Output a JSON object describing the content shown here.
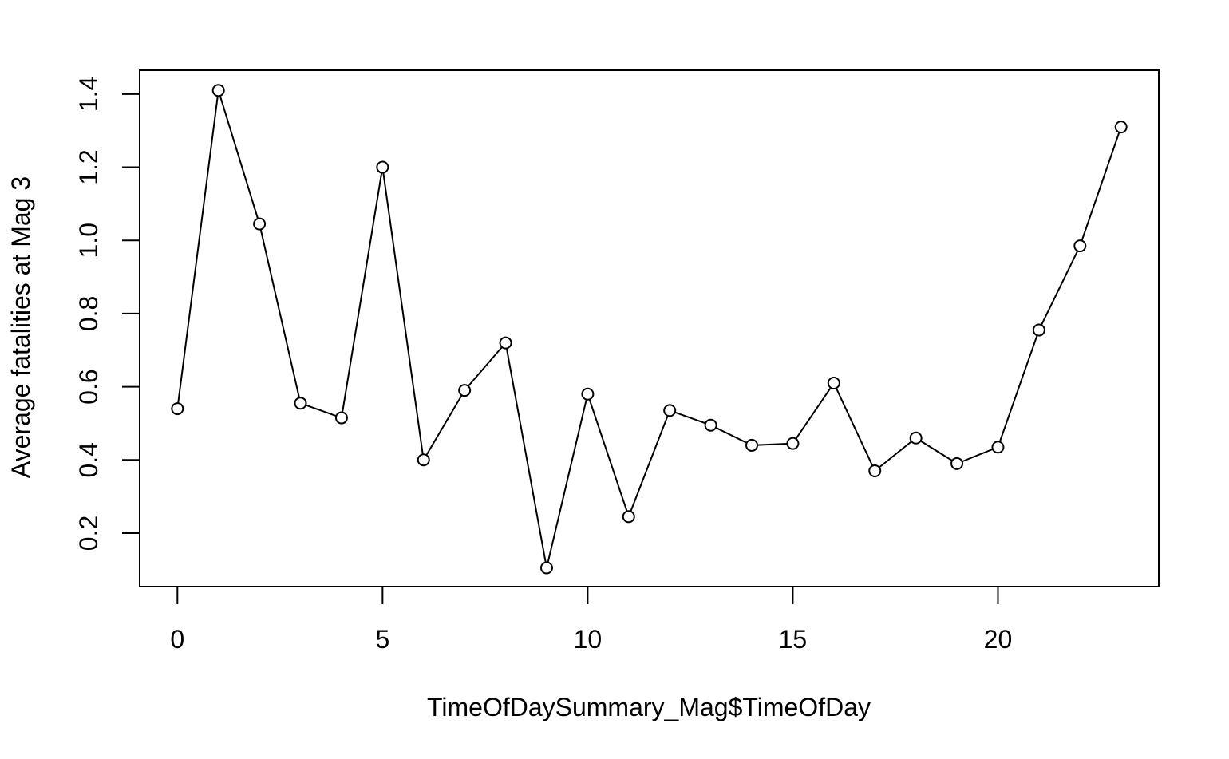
{
  "chart_data": {
    "type": "line",
    "title": "",
    "xlabel": "TimeOfDaySummary_Mag$TimeOfDay",
    "ylabel": "Average fatalities at Mag 3",
    "xlim": [
      -0.92,
      23.92
    ],
    "ylim": [
      0.0537,
      1.4652
    ],
    "x_ticks": [
      0,
      5,
      10,
      15,
      20
    ],
    "x_tick_labels": [
      "0",
      "5",
      "10",
      "15",
      "20"
    ],
    "y_ticks": [
      0.2,
      0.4,
      0.6,
      0.8,
      1.0,
      1.2,
      1.4
    ],
    "y_tick_labels": [
      "0.2",
      "0.4",
      "0.6",
      "0.8",
      "1.0",
      "1.2",
      "1.4"
    ],
    "grid": false,
    "marker": "open-circle",
    "series": [
      {
        "x": [
          0,
          1,
          2,
          3,
          4,
          5,
          6,
          7,
          8,
          9,
          10,
          11,
          12,
          13,
          14,
          15,
          16,
          17,
          18,
          19,
          20,
          21,
          22,
          23
        ],
        "values": [
          0.54,
          1.41,
          1.045,
          0.555,
          0.515,
          1.2,
          0.4,
          0.59,
          0.72,
          0.105,
          0.58,
          0.245,
          0.535,
          0.495,
          0.44,
          0.445,
          0.61,
          0.37,
          0.46,
          0.39,
          0.435,
          0.755,
          0.985,
          1.31
        ],
        "color": "#000000"
      }
    ]
  }
}
